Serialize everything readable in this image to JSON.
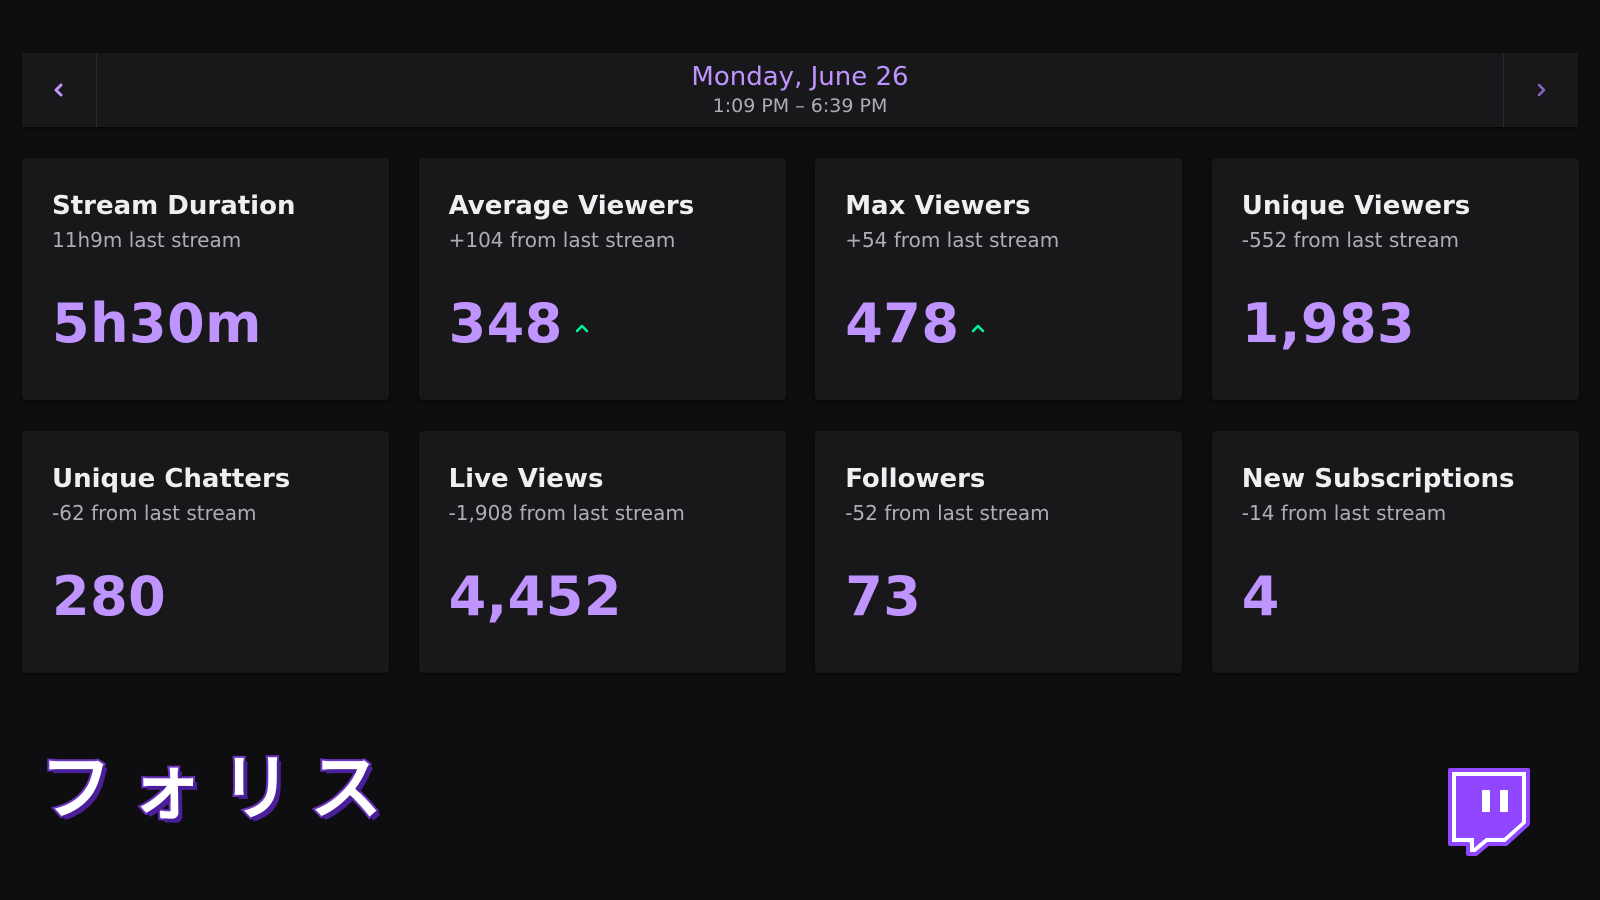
{
  "header": {
    "date": "Monday, June 26",
    "time_range": "1:09 PM – 6:39 PM",
    "prev_icon": "chevron-left-icon",
    "next_icon": "chevron-right-icon"
  },
  "stats": [
    {
      "title": "Stream Duration",
      "subtitle": "11h9m last stream",
      "value": "5h30m",
      "trend": "none"
    },
    {
      "title": "Average Viewers",
      "subtitle": "+104 from last stream",
      "value": "348",
      "trend": "up"
    },
    {
      "title": "Max Viewers",
      "subtitle": "+54 from last stream",
      "value": "478",
      "trend": "up"
    },
    {
      "title": "Unique Viewers",
      "subtitle": "-552 from last stream",
      "value": "1,983",
      "trend": "none"
    },
    {
      "title": "Unique Chatters",
      "subtitle": "-62 from last stream",
      "value": "280",
      "trend": "none"
    },
    {
      "title": "Live Views",
      "subtitle": "-1,908 from last stream",
      "value": "4,452",
      "trend": "none"
    },
    {
      "title": "Followers",
      "subtitle": "-52 from last stream",
      "value": "73",
      "trend": "none"
    },
    {
      "title": "New Subscriptions",
      "subtitle": "-14 from last stream",
      "value": "4",
      "trend": "none"
    }
  ],
  "branding": {
    "channel_name": "フォリス",
    "logo_icon": "twitch-logo-icon"
  },
  "colors": {
    "background": "#0e0e10",
    "card": "#18181b",
    "accent": "#bf94ff",
    "trend_up": "#00f593",
    "muted_text": "#adadb8",
    "brand_purple": "#9146ff"
  }
}
